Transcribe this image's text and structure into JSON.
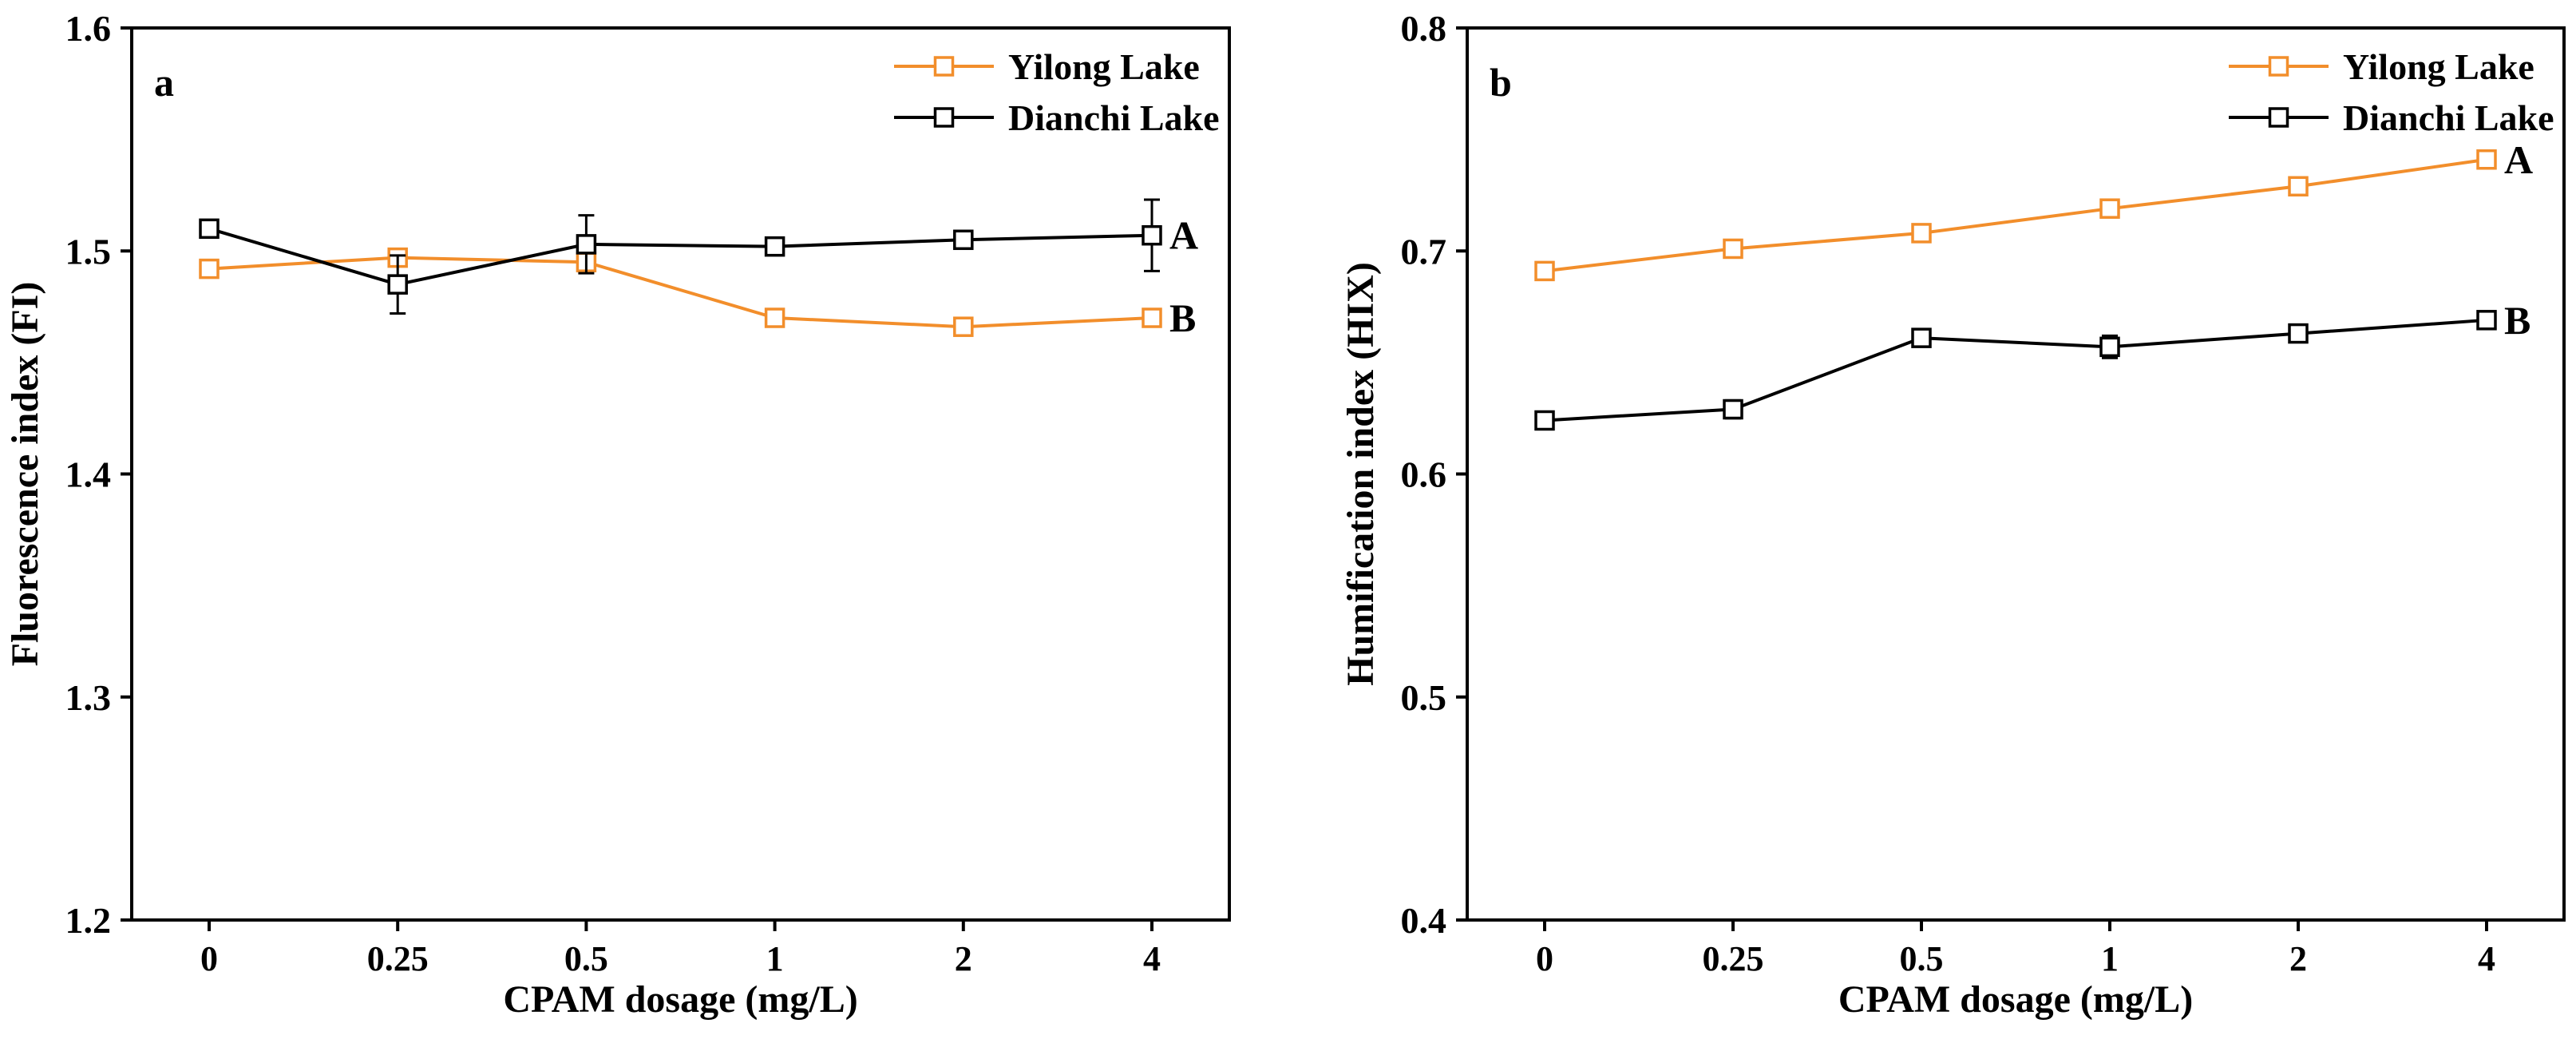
{
  "chart_data": [
    {
      "type": "line",
      "panel_label": "a",
      "xlabel": "CPAM dosage (mg/L)",
      "ylabel": "Fluorescence index (FI)",
      "categories": [
        "0",
        "0.25",
        "0.5",
        "1",
        "2",
        "4"
      ],
      "ylim": [
        1.2,
        1.6
      ],
      "yticks": [
        "1.2",
        "1.3",
        "1.4",
        "1.5",
        "1.6"
      ],
      "legend_position": "top-right",
      "series": [
        {
          "name": "Yilong Lake",
          "color": "#f28e2b",
          "values": [
            1.492,
            1.497,
            1.495,
            1.47,
            1.466,
            1.47
          ],
          "errors": [
            0.002,
            0.002,
            0.003,
            0.002,
            0.002,
            0.002
          ],
          "end_label": "B"
        },
        {
          "name": "Dianchi Lake",
          "color": "#000000",
          "values": [
            1.51,
            1.485,
            1.503,
            1.502,
            1.505,
            1.507
          ],
          "errors": [
            0.002,
            0.013,
            0.013,
            0.002,
            0.002,
            0.016
          ],
          "end_label": "A"
        }
      ]
    },
    {
      "type": "line",
      "panel_label": "b",
      "xlabel": "CPAM dosage (mg/L)",
      "ylabel": "Humification index (HIX)",
      "categories": [
        "0",
        "0.25",
        "0.5",
        "1",
        "2",
        "4"
      ],
      "ylim": [
        0.4,
        0.8
      ],
      "yticks": [
        "0.4",
        "0.5",
        "0.6",
        "0.7",
        "0.8"
      ],
      "legend_position": "top-right",
      "series": [
        {
          "name": "Yilong Lake",
          "color": "#f28e2b",
          "values": [
            0.691,
            0.701,
            0.708,
            0.719,
            0.729,
            0.741
          ],
          "errors": [
            0.003,
            0.003,
            0.003,
            0.003,
            0.003,
            0.003
          ],
          "end_label": "A"
        },
        {
          "name": "Dianchi Lake",
          "color": "#000000",
          "values": [
            0.624,
            0.629,
            0.661,
            0.657,
            0.663,
            0.669
          ],
          "errors": [
            0.003,
            0.004,
            0.003,
            0.005,
            0.003,
            0.003
          ],
          "end_label": "B"
        }
      ]
    }
  ]
}
